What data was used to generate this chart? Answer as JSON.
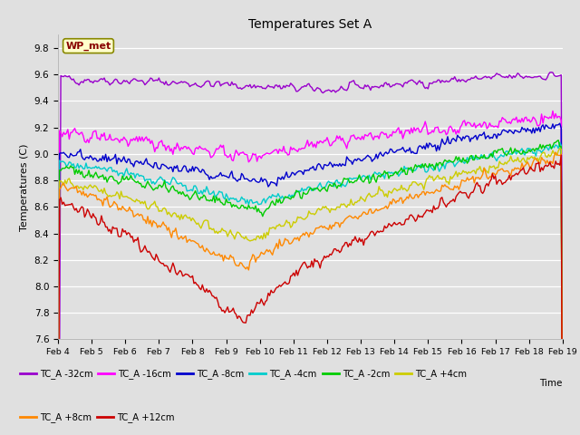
{
  "title": "Temperatures Set A",
  "xlabel": "Time",
  "ylabel": "Temperatures (C)",
  "xlim": [
    0,
    360
  ],
  "ylim": [
    7.6,
    9.9
  ],
  "yticks": [
    7.6,
    7.8,
    8.0,
    8.2,
    8.4,
    8.6,
    8.8,
    9.0,
    9.2,
    9.4,
    9.6,
    9.8
  ],
  "date_labels": [
    "Feb 4",
    "Feb 5",
    "Feb 6",
    "Feb 7",
    "Feb 8",
    "Feb 9",
    "Feb 10",
    "Feb 11",
    "Feb 12",
    "Feb 13",
    "Feb 14",
    "Feb 15",
    "Feb 16",
    "Feb 17",
    "Feb 18",
    "Feb 19"
  ],
  "date_ticks": [
    0,
    24,
    48,
    72,
    96,
    120,
    144,
    168,
    192,
    216,
    240,
    264,
    288,
    312,
    336,
    360
  ],
  "wp_met_label": "WP_met",
  "series": [
    {
      "label": "TC_A -32cm",
      "color": "#9900cc"
    },
    {
      "label": "TC_A -16cm",
      "color": "#ff00ff"
    },
    {
      "label": "TC_A -8cm",
      "color": "#0000cc"
    },
    {
      "label": "TC_A -4cm",
      "color": "#00cccc"
    },
    {
      "label": "TC_A -2cm",
      "color": "#00cc00"
    },
    {
      "label": "TC_A +4cm",
      "color": "#cccc00"
    },
    {
      "label": "TC_A +8cm",
      "color": "#ff8800"
    },
    {
      "label": "TC_A +12cm",
      "color": "#cc0000"
    }
  ],
  "background_color": "#e0e0e0",
  "plot_bg_color": "#e0e0e0",
  "grid_color": "#ffffff"
}
